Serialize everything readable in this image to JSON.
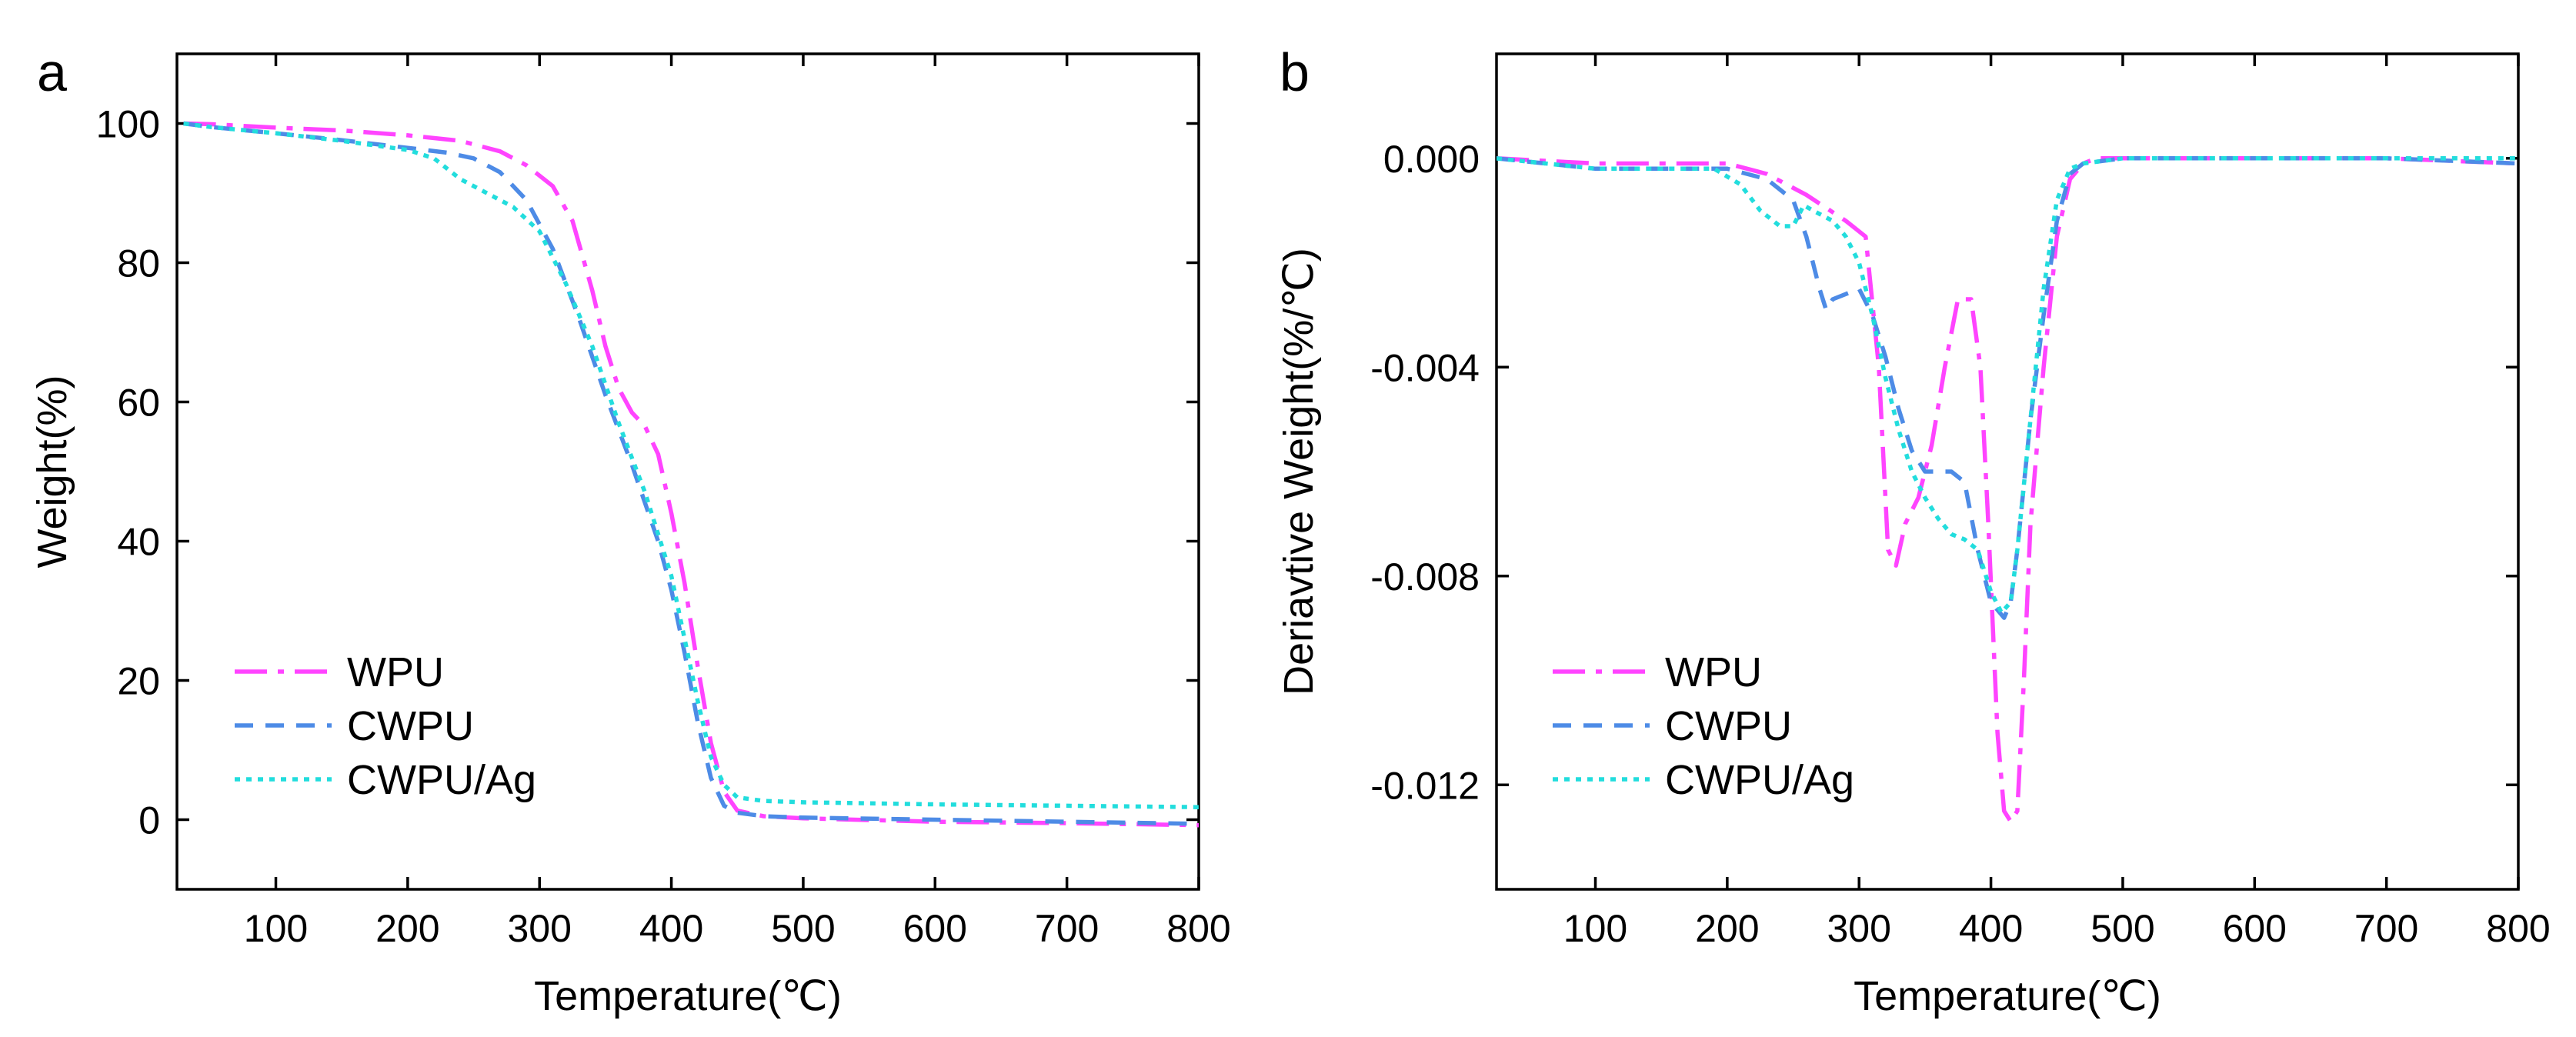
{
  "chart_data": [
    {
      "type": "line",
      "panel_label": "a",
      "title": "",
      "xlabel": "Temperature(℃)",
      "ylabel": "Weight(%)",
      "xlim": [
        25,
        800
      ],
      "ylim": [
        -10,
        110
      ],
      "xticks": [
        100,
        200,
        300,
        400,
        500,
        600,
        700,
        800
      ],
      "yticks": [
        0,
        20,
        40,
        60,
        80,
        100
      ],
      "legend_position": "bottom-left",
      "series": [
        {
          "name": "WPU",
          "color": "#ff44ff",
          "dash": "dashdot",
          "x": [
            30,
            50,
            100,
            150,
            200,
            240,
            270,
            290,
            310,
            325,
            340,
            350,
            360,
            370,
            380,
            390,
            400,
            410,
            420,
            430,
            440,
            450,
            470,
            500,
            600,
            700,
            800
          ],
          "y": [
            100,
            99.9,
            99.4,
            99,
            98.3,
            97.5,
            96,
            94,
            91,
            86,
            76,
            68,
            62,
            58.5,
            56.5,
            52.5,
            44,
            34,
            22,
            11,
            4,
            1.3,
            0.5,
            0.2,
            -0.3,
            -0.5,
            -0.8
          ]
        },
        {
          "name": "CWPU",
          "color": "#4d8be6",
          "dash": "dashed",
          "x": [
            30,
            50,
            100,
            150,
            200,
            230,
            250,
            270,
            290,
            310,
            330,
            350,
            370,
            390,
            400,
            410,
            420,
            430,
            440,
            450,
            470,
            500,
            600,
            700,
            800
          ],
          "y": [
            100,
            99.5,
            98.6,
            97.6,
            96.5,
            95.8,
            95,
            93,
            89,
            82,
            72,
            61,
            51,
            40,
            33,
            24,
            14,
            6,
            2,
            1,
            0.5,
            0.3,
            0,
            -0.3,
            -0.6
          ]
        },
        {
          "name": "CWPU/Ag",
          "color": "#22dddd",
          "dash": "dotted",
          "x": [
            30,
            50,
            100,
            150,
            200,
            220,
            240,
            260,
            280,
            300,
            320,
            340,
            360,
            380,
            400,
            410,
            420,
            430,
            440,
            450,
            470,
            500,
            600,
            700,
            800
          ],
          "y": [
            100,
            99.5,
            98.6,
            97.5,
            96.2,
            95,
            92,
            90,
            88,
            84.5,
            77,
            68,
            57,
            47,
            35,
            26,
            17,
            9,
            5,
            3.2,
            2.7,
            2.5,
            2.2,
            2,
            1.8
          ]
        }
      ]
    },
    {
      "type": "line",
      "panel_label": "b",
      "title": "",
      "xlabel": "Temperature(℃)",
      "ylabel": "Deriavtive Weight(%/℃)",
      "xlim": [
        25,
        800
      ],
      "ylim": [
        -0.014,
        0.002
      ],
      "xticks": [
        100,
        200,
        300,
        400,
        500,
        600,
        700,
        800
      ],
      "yticks": [
        0.0,
        -0.004,
        -0.008,
        -0.012
      ],
      "ytick_labels": [
        "0.000",
        "-0.004",
        "-0.008",
        "-0.012"
      ],
      "legend_position": "bottom-left",
      "series": [
        {
          "name": "WPU",
          "color": "#ff44ff",
          "dash": "dashdot",
          "x": [
            25,
            100,
            150,
            200,
            230,
            260,
            290,
            305,
            315,
            322,
            328,
            335,
            345,
            355,
            365,
            375,
            385,
            392,
            398,
            405,
            410,
            415,
            420,
            425,
            430,
            440,
            450,
            460,
            470,
            480,
            500,
            600,
            700,
            800
          ],
          "y": [
            0.0,
            -0.0001,
            -0.0001,
            -0.0001,
            -0.0003,
            -0.0007,
            -0.0012,
            -0.0015,
            -0.004,
            -0.0075,
            -0.0078,
            -0.007,
            -0.0065,
            -0.0055,
            -0.004,
            -0.0027,
            -0.0027,
            -0.004,
            -0.007,
            -0.011,
            -0.0125,
            -0.0127,
            -0.0125,
            -0.01,
            -0.007,
            -0.004,
            -0.0015,
            -0.0004,
            -0.0001,
            0.0,
            0.0,
            0.0,
            0.0,
            -0.0001
          ]
        },
        {
          "name": "CWPU",
          "color": "#4d8be6",
          "dash": "dashed",
          "x": [
            25,
            100,
            150,
            200,
            230,
            250,
            260,
            270,
            275,
            280,
            290,
            300,
            310,
            320,
            330,
            340,
            350,
            360,
            370,
            380,
            390,
            400,
            410,
            415,
            420,
            430,
            440,
            450,
            460,
            470,
            500,
            600,
            700,
            800
          ],
          "y": [
            0.0,
            -0.0002,
            -0.0002,
            -0.0002,
            -0.0004,
            -0.0008,
            -0.0015,
            -0.0025,
            -0.0029,
            -0.0027,
            -0.0026,
            -0.0025,
            -0.003,
            -0.0038,
            -0.0048,
            -0.0056,
            -0.006,
            -0.006,
            -0.006,
            -0.0062,
            -0.0075,
            -0.0085,
            -0.0088,
            -0.0085,
            -0.0075,
            -0.005,
            -0.003,
            -0.0012,
            -0.0003,
            -0.0001,
            0.0,
            0.0,
            0.0,
            -0.0001
          ]
        },
        {
          "name": "CWPU/Ag",
          "color": "#22dddd",
          "dash": "dotted",
          "x": [
            25,
            100,
            150,
            190,
            210,
            225,
            240,
            250,
            258,
            265,
            280,
            290,
            300,
            310,
            320,
            330,
            340,
            350,
            360,
            370,
            380,
            390,
            400,
            408,
            415,
            420,
            430,
            440,
            450,
            460,
            470,
            500,
            600,
            700,
            800
          ],
          "y": [
            0.0,
            -0.0002,
            -0.0002,
            -0.0002,
            -0.0005,
            -0.001,
            -0.0013,
            -0.0013,
            -0.0009,
            -0.001,
            -0.0012,
            -0.0015,
            -0.002,
            -0.003,
            -0.0042,
            -0.0052,
            -0.006,
            -0.0065,
            -0.0069,
            -0.0072,
            -0.0073,
            -0.0075,
            -0.0083,
            -0.0087,
            -0.0085,
            -0.0075,
            -0.005,
            -0.0025,
            -0.0008,
            -0.0002,
            -0.0001,
            0.0,
            0.0,
            0.0,
            0.0
          ]
        }
      ]
    }
  ]
}
